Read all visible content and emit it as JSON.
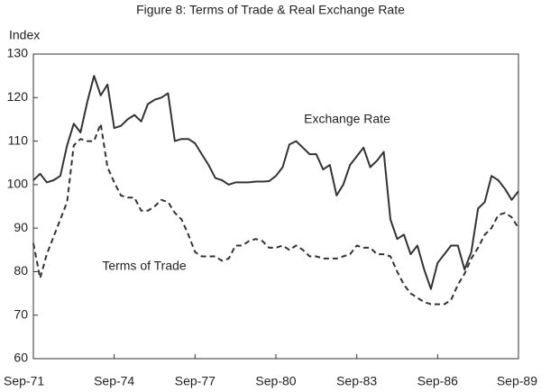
{
  "chart_data": {
    "type": "line",
    "title": "Figure 8: Terms of Trade & Real Exchange Rate",
    "y_label": "Index",
    "categories": [
      "Sep-71",
      null,
      null,
      null,
      null,
      null,
      null,
      null,
      null,
      null,
      null,
      null,
      "Sep-74",
      null,
      null,
      null,
      null,
      null,
      null,
      null,
      null,
      null,
      null,
      null,
      "Sep-77",
      null,
      null,
      null,
      null,
      null,
      null,
      null,
      null,
      null,
      null,
      null,
      "Sep-80",
      null,
      null,
      null,
      null,
      null,
      null,
      null,
      null,
      null,
      null,
      null,
      "Sep-83",
      null,
      null,
      null,
      null,
      null,
      null,
      null,
      null,
      null,
      null,
      null,
      "Sep-86",
      null,
      null,
      null,
      null,
      null,
      null,
      null,
      null,
      null,
      null,
      null,
      "Sep-89"
    ],
    "ylim": [
      60,
      130
    ],
    "yticks": [
      60,
      70,
      80,
      90,
      100,
      110,
      120,
      130
    ],
    "grid": false,
    "series": [
      {
        "name": "Exchange Rate",
        "color": "#333333",
        "line_style": "solid",
        "values": [
          101,
          102.5,
          100.5,
          101,
          102,
          109,
          114,
          112,
          119,
          125,
          120.5,
          123,
          113,
          113.5,
          115,
          116,
          114.5,
          118.5,
          119.5,
          120,
          121,
          110,
          110.5,
          110.5,
          109.5,
          107,
          104.5,
          101.5,
          101,
          100,
          100.5,
          100.5,
          100.5,
          100.7,
          100.7,
          100.8,
          102,
          104,
          109.2,
          110,
          108.5,
          107,
          107,
          103.5,
          104.5,
          97.5,
          100,
          104.5,
          106.5,
          108.5,
          104,
          105.5,
          107.5,
          92,
          87.5,
          88.5,
          84,
          86,
          80.5,
          76,
          82,
          84,
          86,
          86,
          80.5,
          84.5,
          94.5,
          96,
          102,
          101,
          99,
          96.5,
          98.5
        ]
      },
      {
        "name": "Terms of Trade",
        "color": "#333333",
        "line_style": "dashed",
        "values": [
          86.5,
          78.5,
          84,
          88,
          92,
          96,
          109,
          110.5,
          110,
          110,
          114,
          104,
          100.5,
          97.5,
          97,
          97,
          94,
          94,
          95,
          96.5,
          96,
          93.5,
          92,
          88.5,
          84.5,
          83.5,
          83.5,
          83.5,
          82.5,
          83,
          86,
          86,
          87,
          87.5,
          87,
          85.5,
          85.5,
          86,
          85,
          86,
          85,
          83.5,
          83.5,
          83,
          83,
          83,
          83.5,
          84,
          86,
          85.5,
          85.5,
          84,
          84,
          83.5,
          80,
          77,
          75,
          74,
          73,
          72.5,
          72.5,
          72.5,
          73.5,
          77,
          79.5,
          83,
          85.5,
          88.5,
          90,
          93,
          93.5,
          92.5,
          90
        ]
      }
    ]
  }
}
